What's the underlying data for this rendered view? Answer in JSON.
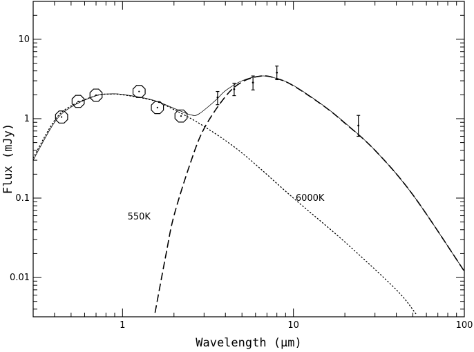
{
  "chart_data": {
    "type": "scatter",
    "xlabel": "Wavelength (μm)",
    "ylabel": "Flux (mJy)",
    "xscale": "log",
    "yscale": "log",
    "xlim": [
      0.3,
      100
    ],
    "ylim": [
      0.0032,
      30
    ],
    "x_ticks": [
      {
        "value": 1,
        "label": "1"
      },
      {
        "value": 10,
        "label": "10"
      },
      {
        "value": 100,
        "label": "100"
      }
    ],
    "y_ticks": [
      {
        "value": 0.01,
        "label": "0.01"
      },
      {
        "value": 0.1,
        "label": "0.1"
      },
      {
        "value": 1,
        "label": "1"
      },
      {
        "value": 10,
        "label": "10"
      }
    ],
    "grid": false,
    "legend": "none",
    "annotations": [
      {
        "text": "550K",
        "x": 1.25,
        "y": 0.058
      },
      {
        "text": "6000K",
        "x": 12.5,
        "y": 0.1
      }
    ],
    "series": [
      {
        "style": "octagon-markers",
        "points": [
          {
            "x": 0.44,
            "y": 1.05
          },
          {
            "x": 0.55,
            "y": 1.65
          },
          {
            "x": 0.7,
            "y": 1.98
          },
          {
            "x": 1.25,
            "y": 2.2
          },
          {
            "x": 1.6,
            "y": 1.38
          },
          {
            "x": 2.2,
            "y": 1.08
          }
        ]
      },
      {
        "style": "error-bars",
        "points": [
          {
            "x": 3.6,
            "y": 1.85,
            "ylow": 1.5,
            "yhigh": 2.2
          },
          {
            "x": 4.5,
            "y": 2.35,
            "ylow": 1.95,
            "yhigh": 2.8
          },
          {
            "x": 5.8,
            "y": 2.85,
            "ylow": 2.3,
            "yhigh": 3.45
          },
          {
            "x": 8.0,
            "y": 3.8,
            "ylow": 3.1,
            "yhigh": 4.6
          },
          {
            "x": 24.0,
            "y": 0.82,
            "ylow": 0.6,
            "yhigh": 1.1
          }
        ]
      },
      {
        "style": "dotted",
        "points": [
          {
            "x": 0.3,
            "y": 0.32
          },
          {
            "x": 0.4,
            "y": 0.95
          },
          {
            "x": 0.5,
            "y": 1.45
          },
          {
            "x": 0.7,
            "y": 1.95
          },
          {
            "x": 0.85,
            "y": 2.04
          },
          {
            "x": 1.0,
            "y": 2.0
          },
          {
            "x": 1.5,
            "y": 1.7
          },
          {
            "x": 2.0,
            "y": 1.3
          },
          {
            "x": 3.0,
            "y": 0.8
          },
          {
            "x": 5.0,
            "y": 0.37
          },
          {
            "x": 10.0,
            "y": 0.1
          },
          {
            "x": 20.0,
            "y": 0.028
          },
          {
            "x": 40.0,
            "y": 0.007
          },
          {
            "x": 52.0,
            "y": 0.0035
          }
        ]
      },
      {
        "style": "dashed",
        "points": [
          {
            "x": 1.55,
            "y": 0.0036
          },
          {
            "x": 1.8,
            "y": 0.02
          },
          {
            "x": 2.0,
            "y": 0.06
          },
          {
            "x": 2.5,
            "y": 0.28
          },
          {
            "x": 3.0,
            "y": 0.75
          },
          {
            "x": 4.0,
            "y": 1.9
          },
          {
            "x": 5.0,
            "y": 2.9
          },
          {
            "x": 6.5,
            "y": 3.45
          },
          {
            "x": 8.0,
            "y": 3.2
          },
          {
            "x": 10.0,
            "y": 2.6
          },
          {
            "x": 15.0,
            "y": 1.45
          },
          {
            "x": 20.0,
            "y": 0.88
          },
          {
            "x": 30.0,
            "y": 0.4
          },
          {
            "x": 50.0,
            "y": 0.11
          },
          {
            "x": 100.0,
            "y": 0.012
          }
        ]
      },
      {
        "style": "solid-thin",
        "points": [
          {
            "x": 0.3,
            "y": 0.3
          },
          {
            "x": 0.4,
            "y": 0.9
          },
          {
            "x": 0.5,
            "y": 1.4
          },
          {
            "x": 0.7,
            "y": 1.95
          },
          {
            "x": 0.85,
            "y": 2.05
          },
          {
            "x": 1.0,
            "y": 2.02
          },
          {
            "x": 1.5,
            "y": 1.72
          },
          {
            "x": 2.0,
            "y": 1.35
          },
          {
            "x": 2.5,
            "y": 1.12
          },
          {
            "x": 2.8,
            "y": 1.15
          },
          {
            "x": 3.5,
            "y": 1.7
          },
          {
            "x": 4.0,
            "y": 2.25
          },
          {
            "x": 5.0,
            "y": 3.0
          },
          {
            "x": 6.5,
            "y": 3.45
          },
          {
            "x": 8.0,
            "y": 3.2
          },
          {
            "x": 10.0,
            "y": 2.62
          },
          {
            "x": 15.0,
            "y": 1.46
          },
          {
            "x": 20.0,
            "y": 0.89
          },
          {
            "x": 30.0,
            "y": 0.4
          },
          {
            "x": 50.0,
            "y": 0.11
          },
          {
            "x": 100.0,
            "y": 0.012
          }
        ]
      }
    ]
  }
}
